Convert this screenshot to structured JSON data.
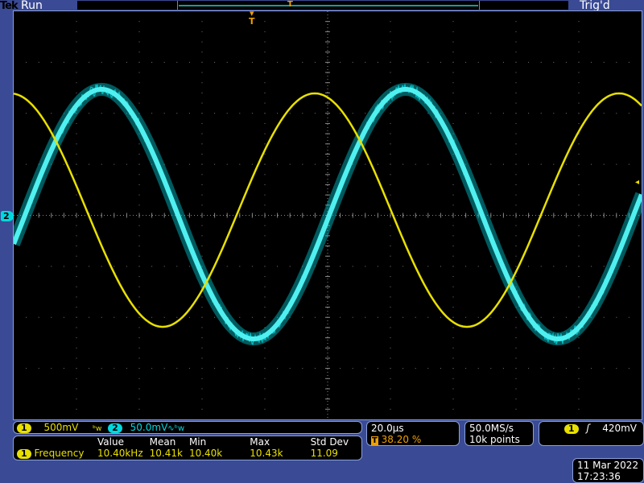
{
  "header": {
    "brand": "Tek",
    "state": "Run",
    "trigger_status": "Trig'd"
  },
  "channels": {
    "ch1": {
      "label": "1",
      "scale": "500mV",
      "coupling_icon": "bandwidth-limit-icon",
      "color": "#e8e000"
    },
    "ch2": {
      "label": "2",
      "scale": "50.0mV",
      "coupling_icon": "ac-bandwidth-icon",
      "color": "#00d8e0"
    }
  },
  "measurement": {
    "headers": [
      "Value",
      "Mean",
      "Min",
      "Max",
      "Std Dev"
    ],
    "channel": "1",
    "name": "Frequency",
    "values": [
      "10.40kHz",
      "10.41k",
      "10.40k",
      "10.43k",
      "11.09"
    ]
  },
  "horizontal": {
    "scale": "20.0µs",
    "trigger_position": "38.20 %"
  },
  "acquisition": {
    "sample_rate": "50.0MS/s",
    "record_length": "10k points"
  },
  "trigger": {
    "source": "1",
    "slope_icon": "rising-edge-icon",
    "level": "420mV"
  },
  "datetime": {
    "date": "11 Mar 2022",
    "time": "17:23:36"
  }
}
